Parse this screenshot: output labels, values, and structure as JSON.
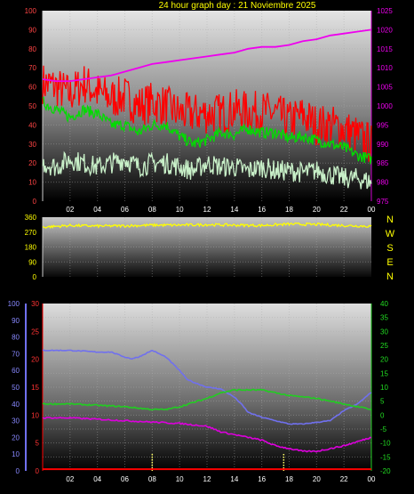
{
  "chart_data": [
    {
      "type": "line",
      "title": "24 hour graph day : 21 Noviembre 2025",
      "x_ticks": [
        "02",
        "04",
        "06",
        "08",
        "10",
        "12",
        "14",
        "16",
        "18",
        "20",
        "22",
        "00"
      ],
      "left_axis": {
        "range": [
          0,
          100
        ],
        "ticks": [
          "100",
          "90",
          "80",
          "70",
          "60",
          "50",
          "40",
          "30",
          "20",
          "10",
          "0"
        ]
      },
      "right_axis": {
        "range": [
          975,
          1025
        ],
        "ticks": [
          "1025",
          "1020",
          "1015",
          "1010",
          "1005",
          "1000",
          "995",
          "990",
          "985",
          "980",
          "975"
        ]
      },
      "grid": true,
      "series": [
        {
          "color": "#ff0000",
          "axis": "left",
          "x": [
            0,
            1,
            2,
            3,
            4,
            5,
            6,
            7,
            8,
            9,
            10,
            11,
            12,
            13,
            14,
            15,
            16,
            17,
            18,
            19,
            20,
            21,
            22,
            23,
            24
          ],
          "values": [
            62,
            60,
            56,
            62,
            57,
            54,
            55,
            50,
            52,
            50,
            46,
            46,
            46,
            46,
            48,
            47,
            47,
            46,
            42,
            45,
            40,
            40,
            38,
            34,
            30
          ]
        },
        {
          "color": "#00dd00",
          "axis": "left",
          "x": [
            0,
            1,
            2,
            3,
            4,
            5,
            6,
            7,
            8,
            9,
            10,
            11,
            12,
            13,
            14,
            15,
            16,
            17,
            18,
            19,
            20,
            21,
            22,
            23,
            24
          ],
          "values": [
            52,
            48,
            44,
            48,
            46,
            40,
            40,
            36,
            40,
            40,
            34,
            30,
            32,
            36,
            35,
            38,
            36,
            36,
            33,
            34,
            32,
            30,
            28,
            24,
            22
          ]
        },
        {
          "color": "#c8f0c8",
          "axis": "left",
          "x": [
            0,
            1,
            2,
            3,
            4,
            5,
            6,
            7,
            8,
            9,
            10,
            11,
            12,
            13,
            14,
            15,
            16,
            17,
            18,
            19,
            20,
            21,
            22,
            23,
            24
          ],
          "values": [
            20,
            18,
            22,
            20,
            18,
            20,
            22,
            18,
            20,
            20,
            18,
            16,
            20,
            18,
            18,
            16,
            18,
            16,
            16,
            15,
            16,
            14,
            12,
            12,
            10
          ]
        },
        {
          "color": "#ee00ee",
          "axis": "right",
          "x": [
            0,
            1,
            2,
            3,
            4,
            5,
            6,
            7,
            8,
            9,
            10,
            11,
            12,
            13,
            14,
            15,
            16,
            17,
            18,
            19,
            20,
            21,
            22,
            23,
            24
          ],
          "values": [
            1007,
            1006.5,
            1006.5,
            1007,
            1007.5,
            1008,
            1009,
            1010,
            1011,
            1011.5,
            1012,
            1012.5,
            1013,
            1013.5,
            1014,
            1015,
            1015.5,
            1015.5,
            1016,
            1017,
            1017.5,
            1018.5,
            1019,
            1019.5,
            1020
          ]
        }
      ]
    },
    {
      "type": "line",
      "title": "",
      "x_ticks": [],
      "left_axis": {
        "range": [
          0,
          360
        ],
        "ticks": [
          "360",
          "270",
          "180",
          "90",
          "0"
        ]
      },
      "direction_labels": [
        "N",
        "W",
        "S",
        "E",
        "N"
      ],
      "series": [
        {
          "color": "#ffff00",
          "x": [
            0,
            2,
            4,
            6,
            8,
            10,
            12,
            14,
            16,
            18,
            20,
            22,
            24
          ],
          "values": [
            300,
            310,
            306,
            308,
            312,
            312,
            315,
            312,
            310,
            318,
            316,
            310,
            305
          ]
        }
      ]
    },
    {
      "type": "line",
      "title": "",
      "x_ticks": [
        "02",
        "04",
        "06",
        "08",
        "10",
        "12",
        "14",
        "16",
        "18",
        "20",
        "22",
        "00"
      ],
      "axis_blue": {
        "range": [
          0,
          100
        ],
        "ticks": [
          "100",
          "90",
          "80",
          "70",
          "60",
          "50",
          "40",
          "30",
          "20",
          "10",
          "0"
        ]
      },
      "axis_red": {
        "range": [
          0,
          30
        ],
        "ticks": [
          "30",
          "25",
          "20",
          "15",
          "10",
          "5",
          "0"
        ]
      },
      "axis_green": {
        "range": [
          -20,
          40
        ],
        "ticks": [
          "40",
          "35",
          "30",
          "25",
          "20",
          "15",
          "10",
          "5",
          "0",
          "-5",
          "-10",
          "-15",
          "-20"
        ]
      },
      "series": [
        {
          "color": "#7070ee",
          "axis": "blue",
          "x": [
            0,
            2,
            4,
            5,
            6,
            6.5,
            7,
            8,
            9,
            10,
            10.5,
            11,
            12,
            13,
            14,
            14.5,
            15,
            16,
            17,
            18,
            19,
            20,
            21,
            22,
            23,
            24
          ],
          "values": [
            72,
            72,
            71,
            71,
            68,
            67,
            68,
            72,
            68,
            60,
            55,
            53,
            50,
            49,
            44,
            40,
            35,
            32,
            30,
            28,
            28,
            29,
            30,
            36,
            40,
            47
          ]
        },
        {
          "color": "#22cc22",
          "axis": "green",
          "x": [
            0,
            2,
            4,
            6,
            8,
            9,
            10,
            12,
            13,
            14,
            16,
            17,
            18,
            20,
            22,
            24
          ],
          "values": [
            4,
            4,
            3.5,
            3,
            2,
            2,
            3,
            6,
            8,
            9,
            9,
            8,
            7,
            6,
            4,
            2
          ]
        },
        {
          "color": "#dd00dd",
          "axis": "green",
          "x": [
            0,
            2,
            4,
            6,
            8,
            10,
            12,
            13,
            14,
            16,
            17,
            18,
            19,
            20,
            22,
            24
          ],
          "values": [
            -1,
            -1,
            -1.5,
            -2,
            -2.5,
            -3,
            -4,
            -6,
            -7,
            -9,
            -11,
            -12,
            -13,
            -13,
            -11,
            -8
          ]
        },
        {
          "color": "#ff0000",
          "axis": "red",
          "x": [
            0,
            24
          ],
          "values": [
            0.3,
            0.3
          ]
        }
      ],
      "markers_x": [
        8,
        17.6
      ]
    }
  ]
}
